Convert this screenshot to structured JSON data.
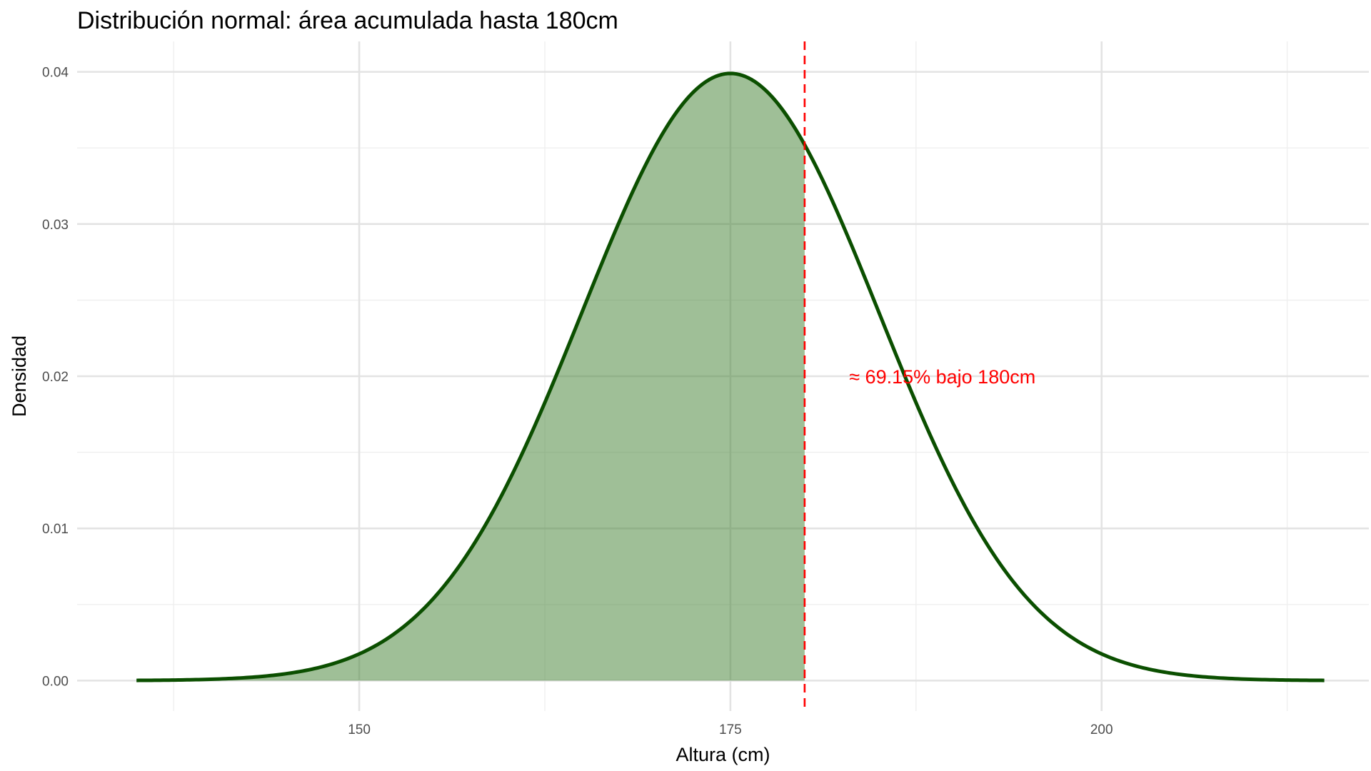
{
  "chart_data": {
    "type": "area",
    "title": "Distribución normal: área acumulada hasta 180cm",
    "xlabel": "Altura (cm)",
    "ylabel": "Densidad",
    "distribution": {
      "family": "normal",
      "mean": 175,
      "sd": 10
    },
    "x_range_curve": [
      135,
      215
    ],
    "xlim": [
      131,
      218
    ],
    "ylim": [
      -0.002,
      0.042
    ],
    "x_ticks": [
      150,
      175,
      200
    ],
    "x_tick_labels": [
      "150",
      "175",
      "200"
    ],
    "y_ticks": [
      0.0,
      0.01,
      0.02,
      0.03,
      0.04
    ],
    "y_tick_labels": [
      "0.00",
      "0.01",
      "0.02",
      "0.03",
      "0.04"
    ],
    "shade_upper": 180,
    "threshold": 180,
    "annotation": {
      "text": "≈ 69.15% bajo 180cm",
      "x": 183,
      "y": 0.02
    },
    "grid": true,
    "colors": {
      "curve": "#0b4f00",
      "fill": "#3f7f2f",
      "threshold_line": "#ff0000",
      "annotation": "#ff0000"
    }
  }
}
